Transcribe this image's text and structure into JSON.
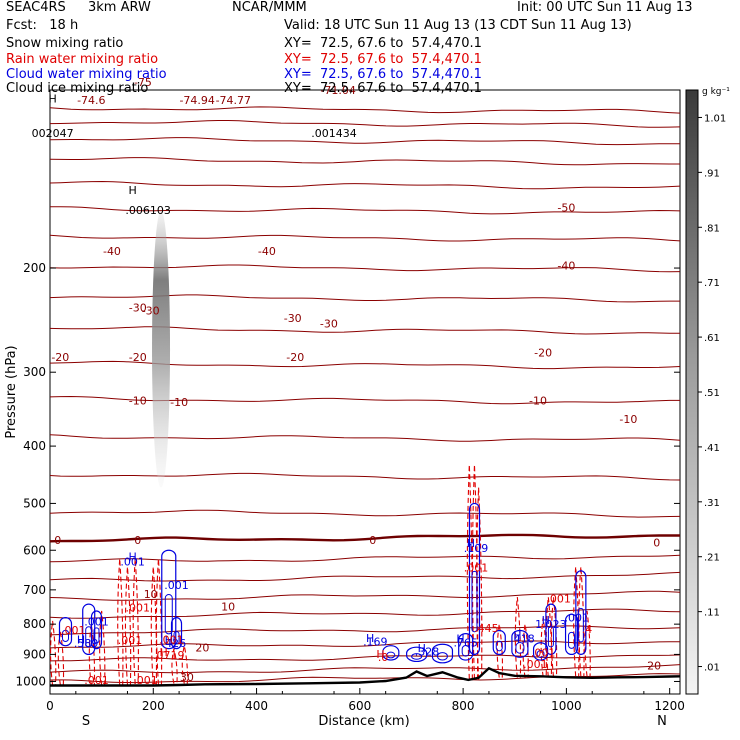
{
  "header": {
    "experiment": "SEAC4RS",
    "model": "3km ARW",
    "institution": "NCAR/MMM",
    "init": "Init: 00 UTC Sun 11 Aug 13",
    "forecast": "Fcst:   18 h",
    "valid": "Valid: 18 UTC Sun 11 Aug 13 (13 CDT Sun 11 Aug 13)"
  },
  "fields": [
    {
      "name": "Snow mixing ratio",
      "xy": "XY=  72.5, 67.6 to  57.4,470.1",
      "color": "#000000"
    },
    {
      "name": "Rain water mixing ratio",
      "xy": "XY=  72.5, 67.6 to  57.4,470.1",
      "color": "#e00000"
    },
    {
      "name": "Cloud water mixing ratio",
      "xy": "XY=  72.5, 67.6 to  57.4,470.1",
      "color": "#0000e0"
    },
    {
      "name": "Cloud ice mixing ratio",
      "xy": "XY=  72.5, 67.6 to  57.4,470.1",
      "color": "#000000"
    }
  ],
  "chart_data": {
    "type": "contour-cross-section",
    "xlabel": "Distance (km)",
    "ylabel": "Pressure (hPa)",
    "xlim": [
      0,
      1220
    ],
    "ylim": [
      1050,
      100
    ],
    "x_ticks": [
      "0",
      "200",
      "400",
      "600",
      "800",
      "1000",
      "1200"
    ],
    "y_ticks": [
      "200",
      "300",
      "400",
      "500",
      "600",
      "700",
      "800",
      "900",
      "1000"
    ],
    "y_tick_values": [
      200,
      300,
      400,
      500,
      600,
      700,
      800,
      900,
      1000
    ],
    "orientation_labels": {
      "left": "S",
      "right": "N"
    },
    "colorbar": {
      "units": "g kg⁻¹",
      "labels": [
        "1.01",
        ".91",
        ".81",
        ".71",
        ".61",
        ".51",
        ".41",
        ".31",
        ".21",
        ".11",
        ".01"
      ],
      "label_values": [
        1.01,
        0.91,
        0.81,
        0.71,
        0.61,
        0.51,
        0.41,
        0.31,
        0.21,
        0.11,
        0.01
      ]
    },
    "temperature_contours": {
      "color": "#8b0000",
      "zero_line_color": "#6e0000",
      "levels": [
        -75,
        -70,
        -60,
        -50,
        -40,
        -30,
        -20,
        -10,
        0,
        10,
        20,
        30
      ],
      "label_text": [
        "-74.6",
        "-75",
        "-74.94",
        "-74.77",
        "-71.04",
        "-50",
        "-40",
        "-40",
        "-40",
        "-30",
        "-30",
        "-30",
        "-30",
        "-20",
        "-20",
        "-20",
        "-20",
        "-10",
        "-10",
        "-10",
        "-10",
        "0",
        "0",
        "0",
        "0",
        "10",
        "10",
        "20",
        "20",
        "30"
      ],
      "zero_level_pressure": [
        573,
        572,
        573,
        571,
        570,
        569,
        570,
        567,
        565,
        566,
        565,
        567,
        570,
        568,
        569,
        571,
        572,
        573
      ]
    },
    "terrain": {
      "x": [
        0,
        100,
        200,
        250,
        300,
        400,
        500,
        600,
        650,
        690,
        710,
        730,
        760,
        790,
        810,
        830,
        850,
        870,
        900,
        950,
        1000,
        1050,
        1100,
        1150,
        1200,
        1220
      ],
      "pressure": [
        1016,
        1016,
        1016,
        1014,
        1011,
        1010,
        1007,
        1004,
        998,
        985,
        962,
        979,
        965,
        985,
        994,
        986,
        950,
        968,
        978,
        980,
        984,
        986,
        984,
        983,
        981,
        980
      ]
    },
    "snow_plume": {
      "x": 215,
      "p_top": 160,
      "p_bottom": 470,
      "max": 0.6
    },
    "annotations": [
      {
        "text": "H",
        "color": "#000000",
        "x": 5,
        "p": 105
      },
      {
        "text": "002047",
        "color": "#000000",
        "x": 5,
        "p": 120
      },
      {
        "text": ".001434",
        "color": "#000000",
        "x": 550,
        "p": 120
      },
      {
        "text": "H",
        "color": "#000000",
        "x": 160,
        "p": 150
      },
      {
        "text": ".006103",
        "color": "#000000",
        "x": 190,
        "p": 162
      },
      {
        "text": "H",
        "color": "#0000e0",
        "x": 160,
        "p": 625
      },
      {
        "text": ".001",
        "color": "#0000e0",
        "x": 160,
        "p": 637
      },
      {
        "text": ".001",
        "color": "#0000e0",
        "x": 245,
        "p": 698
      },
      {
        "text": ".001",
        "color": "#0000e0",
        "x": 90,
        "p": 805
      },
      {
        "text": "H",
        "color": "#0000e0",
        "x": 60,
        "p": 862
      },
      {
        "text": ".589",
        "color": "#0000e0",
        "x": 70,
        "p": 874
      },
      {
        "text": "H",
        "color": "#0000e0",
        "x": 230,
        "p": 862
      },
      {
        "text": ".426",
        "color": "#0000e0",
        "x": 240,
        "p": 874
      },
      {
        "text": "H",
        "color": "#0000e0",
        "x": 620,
        "p": 858
      },
      {
        "text": ".169",
        "color": "#0000e0",
        "x": 630,
        "p": 870
      },
      {
        "text": "H",
        "color": "#0000e0",
        "x": 720,
        "p": 892
      },
      {
        "text": ".328",
        "color": "#0000e0",
        "x": 730,
        "p": 904
      },
      {
        "text": "H",
        "color": "#0000e0",
        "x": 795,
        "p": 860
      },
      {
        "text": ".765",
        "color": "#0000e0",
        "x": 805,
        "p": 872
      },
      {
        "text": "H",
        "color": "#0000e0",
        "x": 815,
        "p": 592
      },
      {
        "text": ".109",
        "color": "#0000e0",
        "x": 825,
        "p": 604
      },
      {
        "text": "H",
        "color": "#0000e0",
        "x": 905,
        "p": 848
      },
      {
        "text": ".418",
        "color": "#0000e0",
        "x": 915,
        "p": 860
      },
      {
        "text": "H",
        "color": "#0000e0",
        "x": 960,
        "p": 800
      },
      {
        "text": "1.023",
        "color": "#0000e0",
        "x": 970,
        "p": 812
      },
      {
        "text": ".001",
        "color": "#0000e0",
        "x": 1020,
        "p": 792
      },
      {
        "text": ".001",
        "color": "#e00000",
        "x": 45,
        "p": 832
      },
      {
        "text": ".001",
        "color": "#e00000",
        "x": 170,
        "p": 762
      },
      {
        "text": ".001",
        "color": "#e00000",
        "x": 155,
        "p": 865
      },
      {
        "text": ".001",
        "color": "#e00000",
        "x": 235,
        "p": 862
      },
      {
        "text": "H",
        "color": "#e00000",
        "x": 220,
        "p": 905
      },
      {
        "text": ".0719",
        "color": "#e00000",
        "x": 230,
        "p": 917
      },
      {
        "text": ".001",
        "color": "#e00000",
        "x": 90,
        "p": 1010
      },
      {
        "text": ".001",
        "color": "#e00000",
        "x": 185,
        "p": 1010
      },
      {
        "text": "H",
        "color": "#e00000",
        "x": 640,
        "p": 912
      },
      {
        "text": ".0",
        "color": "#e00000",
        "x": 645,
        "p": 924
      },
      {
        "text": ".001",
        "color": "#e00000",
        "x": 825,
        "p": 652
      },
      {
        "text": ".445",
        "color": "#e00000",
        "x": 845,
        "p": 825
      },
      {
        "text": ".001",
        "color": "#e00000",
        "x": 955,
        "p": 907
      },
      {
        "text": ".001",
        "color": "#e00000",
        "x": 940,
        "p": 948
      },
      {
        "text": ".001",
        "color": "#e00000",
        "x": 985,
        "p": 735
      },
      {
        "text": ".4",
        "color": "#e00000",
        "x": 1040,
        "p": 828
      }
    ]
  }
}
